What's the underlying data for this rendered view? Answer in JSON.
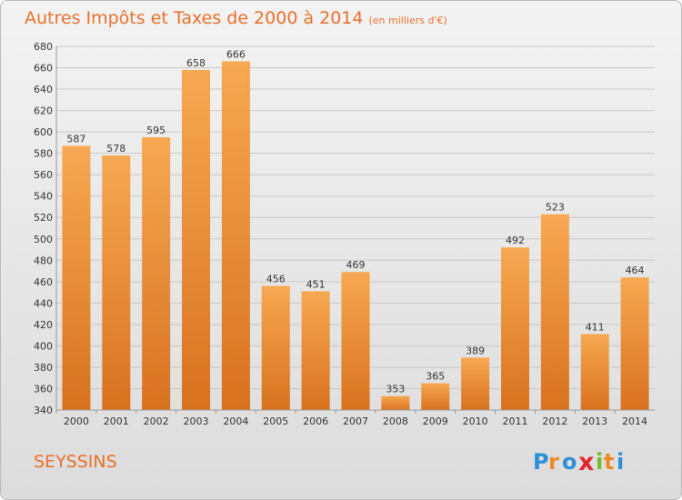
{
  "header": {
    "title": "Autres Impôts et Taxes de 2000 à 2014",
    "subtitle": "(en milliers d'€)"
  },
  "footer": {
    "place": "SEYSSINS",
    "logo_text": "Proxiti"
  },
  "colors": {
    "bar_light": "#f7a852",
    "bar_dark": "#d8721f",
    "accent": "#e8702a"
  },
  "chart_data": {
    "type": "bar",
    "title": "Autres Impôts et Taxes de 2000 à 2014",
    "subtitle": "(en milliers d'€)",
    "categories": [
      "2000",
      "2001",
      "2002",
      "2003",
      "2004",
      "2005",
      "2006",
      "2007",
      "2008",
      "2009",
      "2010",
      "2011",
      "2012",
      "2013",
      "2014"
    ],
    "values": [
      587,
      578,
      595,
      658,
      666,
      456,
      451,
      469,
      353,
      365,
      389,
      492,
      523,
      411,
      464
    ],
    "ylim": [
      340,
      680
    ],
    "yticks": [
      340,
      360,
      380,
      400,
      420,
      440,
      460,
      480,
      500,
      520,
      540,
      560,
      580,
      600,
      620,
      640,
      660,
      680
    ],
    "grid": true,
    "data_labels": true
  }
}
